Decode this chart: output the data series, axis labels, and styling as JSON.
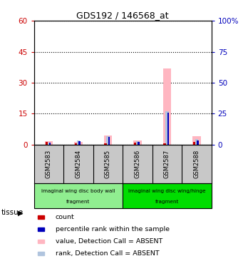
{
  "title": "GDS192 / 146568_at",
  "samples": [
    "GSM2583",
    "GSM2584",
    "GSM2585",
    "GSM2586",
    "GSM2587",
    "GSM2588"
  ],
  "left_ylim": [
    0,
    60
  ],
  "right_ylim": [
    0,
    100
  ],
  "left_yticks": [
    0,
    15,
    30,
    45,
    60
  ],
  "right_yticks": [
    0,
    25,
    50,
    75,
    100
  ],
  "left_yticklabels": [
    "0",
    "15",
    "30",
    "45",
    "60"
  ],
  "right_yticklabels": [
    "0",
    "25",
    "50",
    "75",
    "100%"
  ],
  "value_absent": [
    1.5,
    1.2,
    4.5,
    2.0,
    37.0,
    4.0
  ],
  "rank_absent": [
    1.0,
    1.8,
    4.0,
    1.5,
    16.0,
    2.5
  ],
  "count": [
    1.2,
    0.6,
    0.6,
    1.0,
    0.4,
    1.2
  ],
  "percentile_rank": [
    1.0,
    1.5,
    3.5,
    1.2,
    15.5,
    2.0
  ],
  "tissue_groups": [
    {
      "label_top": "imaginal wing disc body wall",
      "label_bot": "fragment",
      "samples": [
        0,
        1,
        2
      ],
      "color": "#90EE90"
    },
    {
      "label_top": "imaginal wing disc wing/hinge",
      "label_bot": "fragment",
      "samples": [
        3,
        4,
        5
      ],
      "color": "#00DD00"
    }
  ],
  "value_color": "#FFB6C1",
  "rank_color": "#B0C4DE",
  "count_color": "#CC0000",
  "percentile_color": "#0000BB",
  "legend": [
    {
      "color": "#CC0000",
      "label": "count"
    },
    {
      "color": "#0000BB",
      "label": "percentile rank within the sample"
    },
    {
      "color": "#FFB6C1",
      "label": "value, Detection Call = ABSENT"
    },
    {
      "color": "#B0C4DE",
      "label": "rank, Detection Call = ABSENT"
    }
  ],
  "background_color": "#ffffff",
  "box_color": "#c8c8c8"
}
